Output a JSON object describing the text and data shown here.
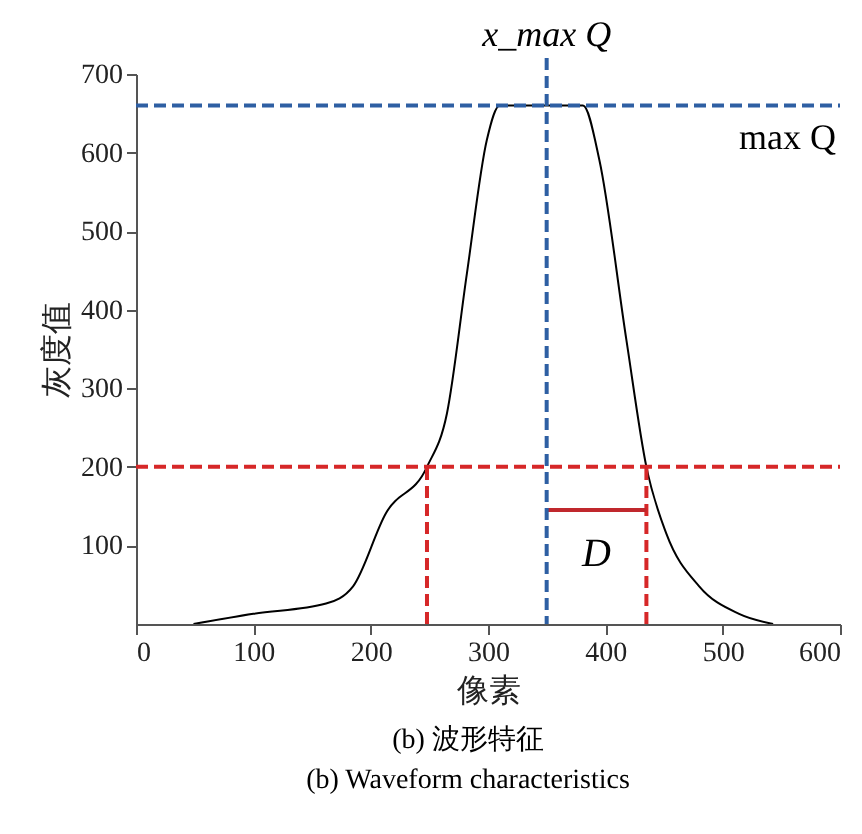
{
  "chart_data": {
    "type": "line",
    "xlabel": "像素",
    "ylabel": "灰度值",
    "xlim": [
      0,
      600
    ],
    "xticks": [
      0,
      100,
      200,
      300,
      400,
      500,
      600
    ],
    "ylim": [
      0,
      700
    ],
    "yticks": [
      100,
      200,
      300,
      400,
      500,
      600,
      700
    ],
    "grid": false,
    "marker": "none",
    "series": [
      {
        "color": "#000000",
        "line_style": "solid",
        "x": [
          49,
          100,
          162,
          185,
          213,
          248,
          265,
          282,
          299,
          310,
          350,
          381,
          395,
          418,
          435,
          452,
          480,
          514,
          543
        ],
        "values": [
          0,
          13,
          26,
          48,
          141,
          200,
          268,
          446,
          616,
          660,
          660,
          660,
          590,
          361,
          200,
          115,
          48,
          13,
          0
        ]
      },
      {
        "color": "#d62728",
        "line_style": "dashed",
        "x": [
          248,
          248
        ],
        "values": [
          0,
          200
        ]
      },
      {
        "color": "#d62728",
        "line_style": "dashed",
        "x": [
          435,
          435
        ],
        "values": [
          0,
          200
        ]
      },
      {
        "color": "#c0282d",
        "line_style": "solid",
        "x": [
          350,
          435
        ],
        "values": [
          145,
          145
        ]
      }
    ],
    "ref_lines": [
      {
        "axis": "y",
        "value": 660,
        "label": "max Q",
        "color": "#2e5fa3",
        "line_style": "dashed"
      },
      {
        "axis": "x",
        "value": 350,
        "label": "x_max Q",
        "color": "#2e5fa3",
        "line_style": "dashed"
      },
      {
        "axis": "y",
        "value": 200,
        "color": "#d62728",
        "line_style": "dashed"
      }
    ],
    "annotations": [
      "D",
      "(b) 波形特征",
      "(b) Waveform characteristics"
    ]
  }
}
